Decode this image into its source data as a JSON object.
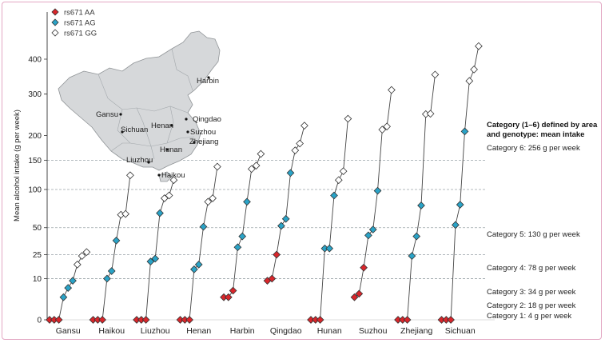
{
  "colors": {
    "AA": "#d9262b",
    "AG": "#2aa3c7",
    "GG": "#ffffff",
    "line": "#444444",
    "grid": "#9aa3a8",
    "border": "#e3a7c3",
    "map_fill": "#d6d8da"
  },
  "chart_data": {
    "type": "scatter",
    "ylabel": "Mean alcohol intake (g per week)",
    "yticks": [
      0,
      10,
      25,
      50,
      100,
      150,
      200,
      300,
      400
    ],
    "yscale": "sqrt",
    "ylim": [
      0,
      450
    ],
    "legend": {
      "placement": "top-left",
      "entries": [
        {
          "key": "AA",
          "label": "rs671 AA"
        },
        {
          "key": "AG",
          "label": "rs671 AG"
        },
        {
          "key": "GG",
          "label": "rs671 GG"
        }
      ]
    },
    "categories": [
      "Gansu",
      "Haikou",
      "Liuzhou",
      "Henan",
      "Harbin",
      "Qingdao",
      "Hunan",
      "Suzhou",
      "Zhejiang",
      "Sichuan"
    ],
    "series": [
      {
        "area": "Gansu",
        "AA": [
          0,
          0,
          0
        ],
        "AG": [
          3,
          6,
          9
        ],
        "GG": [
          18,
          24,
          27
        ]
      },
      {
        "area": "Haikou",
        "AA": [
          0,
          0,
          0
        ],
        "AG": [
          10,
          14,
          37
        ],
        "GG": [
          65,
          66,
          123
        ]
      },
      {
        "area": "Liuzhou",
        "AA": [
          0,
          0,
          0
        ],
        "AG": [
          20,
          22,
          67
        ],
        "GG": [
          87,
          91,
          115
        ]
      },
      {
        "area": "Henan",
        "AA": [
          0,
          0,
          0
        ],
        "AG": [
          15,
          18,
          51
        ],
        "GG": [
          82,
          87,
          138
        ]
      },
      {
        "area": "Harbin",
        "AA": [
          3,
          3,
          5
        ],
        "AG": [
          31,
          41,
          82
        ],
        "GG": [
          134,
          140,
          162
        ]
      },
      {
        "area": "Qingdao",
        "AA": [
          9,
          10,
          25
        ],
        "AG": [
          52,
          60,
          127
        ],
        "GG": [
          169,
          183,
          222
        ]
      },
      {
        "area": "Hunan",
        "AA": [
          0,
          0,
          0
        ],
        "AG": [
          30,
          30,
          91
        ],
        "GG": [
          115,
          130,
          238
        ]
      },
      {
        "area": "Suzhou",
        "AA": [
          3,
          4,
          16
        ],
        "AG": [
          42,
          48,
          98
        ],
        "GG": [
          213,
          220,
          311
        ]
      },
      {
        "area": "Zhejiang",
        "AA": [
          0,
          0,
          0
        ],
        "AG": [
          24,
          41,
          77
        ],
        "GG": [
          249,
          250,
          354
        ]
      },
      {
        "area": "Sichuan",
        "AA": [
          0,
          0,
          0
        ],
        "AG": [
          53,
          78,
          209
        ],
        "GG": [
          336,
          369,
          441
        ]
      }
    ],
    "reference_lines": [
      10,
      25,
      50,
      100,
      150
    ],
    "annotations": {
      "heading": [
        "Category (1–6) defined by area",
        "and genotype: mean intake"
      ],
      "categories": [
        {
          "label": "Category 6: 256 g per week",
          "y": 256
        },
        {
          "label": "Category 5: 130 g per week",
          "y": 130
        },
        {
          "label": "Category 4: 78 g per week",
          "y": 78
        },
        {
          "label": "Category 3: 34 g per week",
          "y": 34
        },
        {
          "label": "Category 2: 18 g per week",
          "y": 18
        },
        {
          "label": "Category 1: 4 g per week",
          "y": 4
        }
      ]
    },
    "map_labels": [
      "Harbin",
      "Gansu",
      "Qingdao",
      "Henan",
      "Sichuan",
      "Suzhou",
      "Zhejiang",
      "Hunan",
      "Liuzhou",
      "Haikou"
    ]
  }
}
